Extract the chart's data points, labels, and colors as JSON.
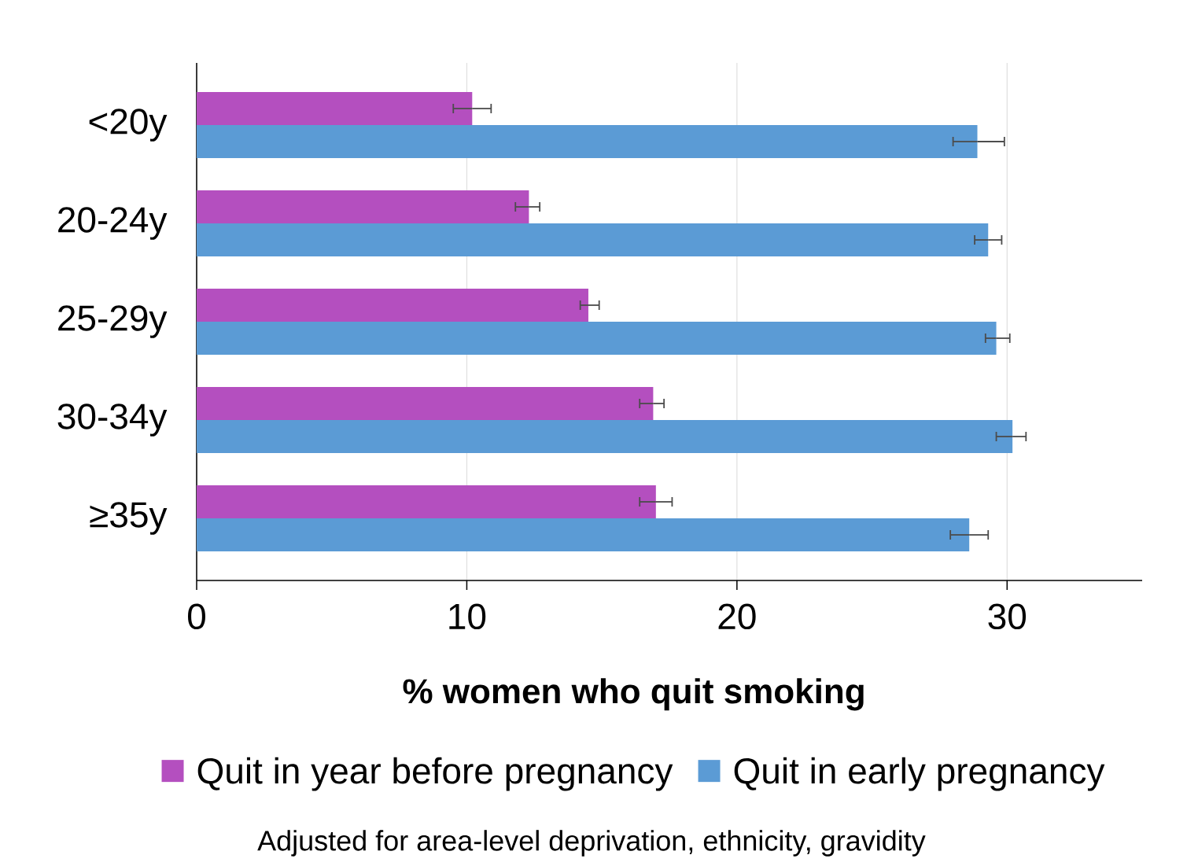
{
  "chart_data": {
    "type": "bar",
    "orientation": "horizontal",
    "categories": [
      "<20y",
      "20-24y",
      "25-29y",
      "30-34y",
      "≥35y"
    ],
    "series": [
      {
        "name": "Quit in year before pregnancy",
        "color": "#b44fbf",
        "values": [
          10.2,
          12.3,
          14.5,
          16.9,
          17.0
        ],
        "errors": [
          [
            9.5,
            10.9
          ],
          [
            11.8,
            12.7
          ],
          [
            14.2,
            14.9
          ],
          [
            16.4,
            17.3
          ],
          [
            16.4,
            17.6
          ]
        ]
      },
      {
        "name": "Quit in early pregnancy",
        "color": "#5b9bd5",
        "values": [
          28.9,
          29.3,
          29.6,
          30.2,
          28.6
        ],
        "errors": [
          [
            28.0,
            29.9
          ],
          [
            28.8,
            29.8
          ],
          [
            29.2,
            30.1
          ],
          [
            29.6,
            30.7
          ],
          [
            27.9,
            29.3
          ]
        ]
      }
    ],
    "xlim": [
      0,
      35
    ],
    "xticks": [
      0,
      10,
      20,
      30
    ],
    "xlabel": "% women who quit smoking",
    "grid": "x",
    "legend": "bottom",
    "annotations": [
      "Adjusted for area-level deprivation, ethnicity, gravidity"
    ]
  }
}
